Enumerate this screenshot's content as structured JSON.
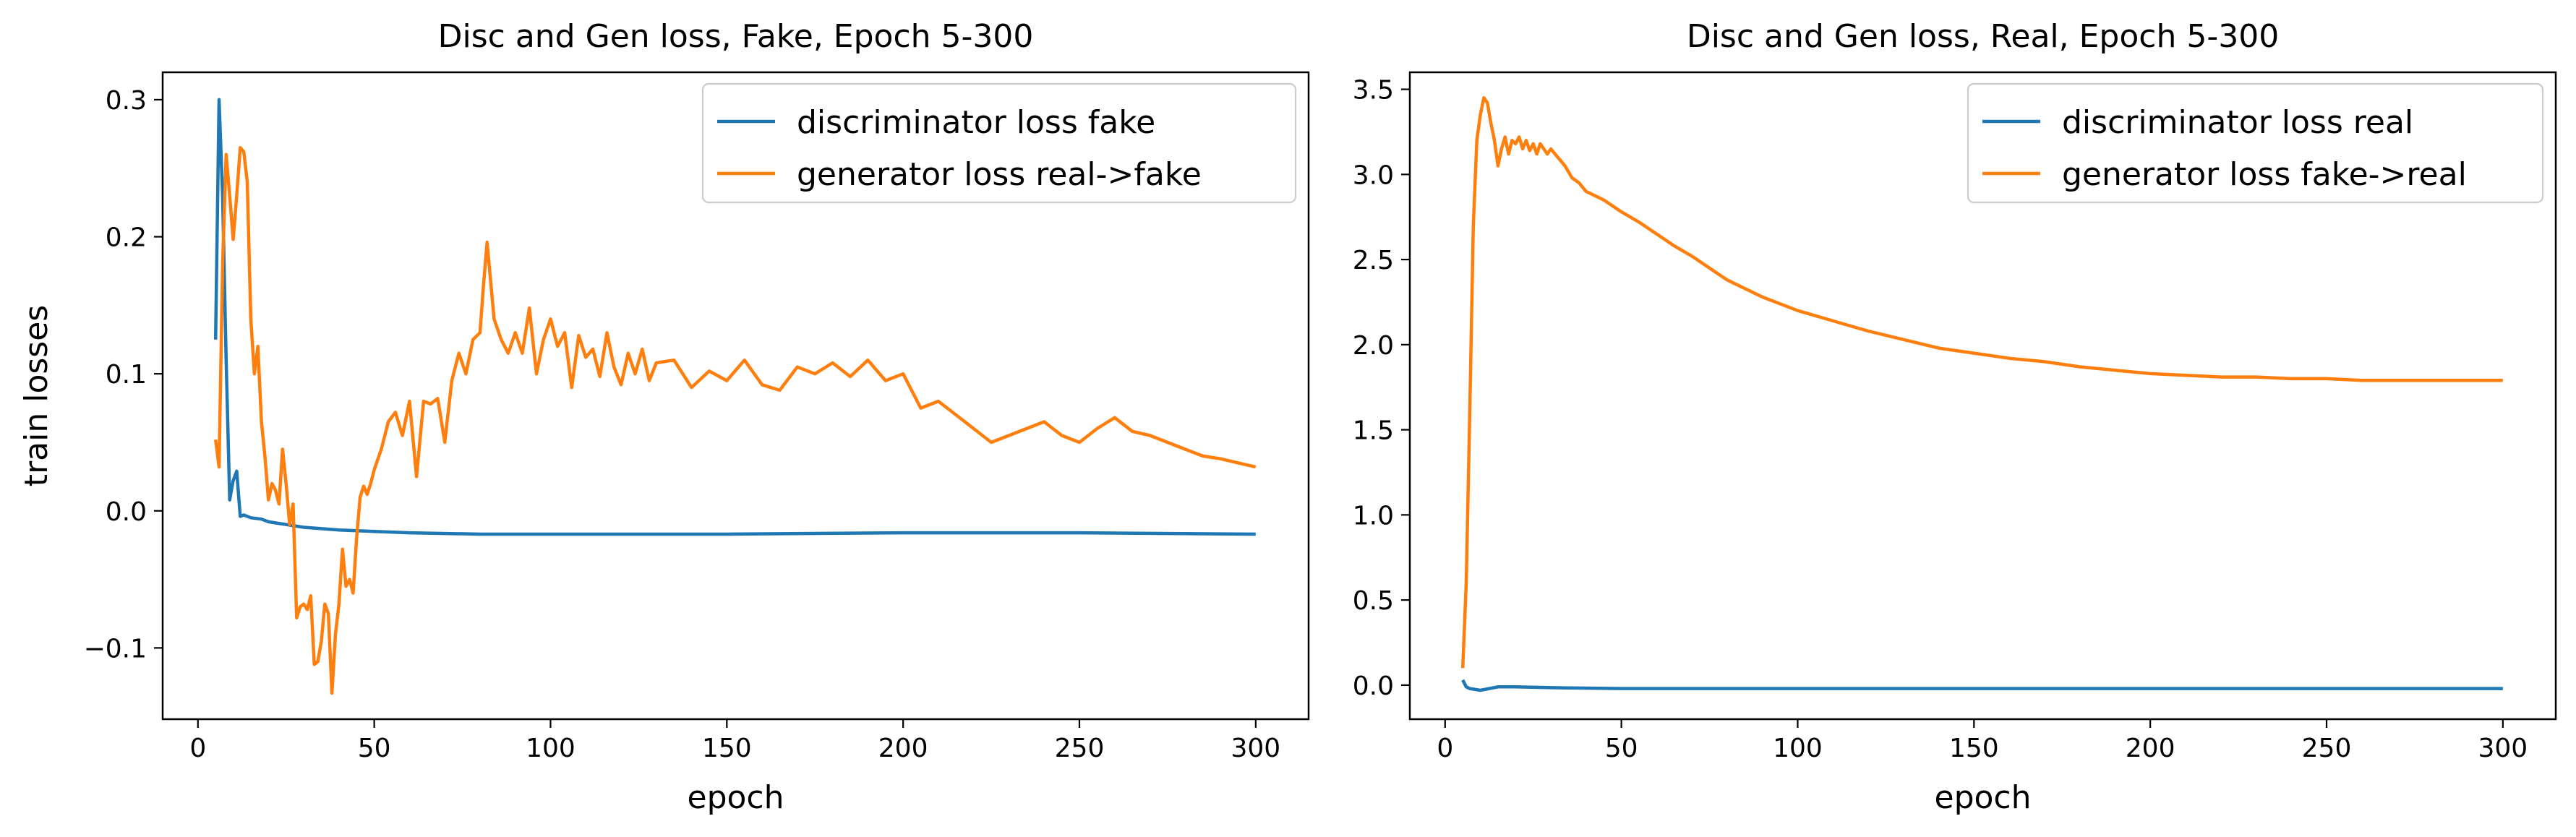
{
  "chart_data": [
    {
      "type": "line",
      "title": "Disc and Gen loss, Fake, Epoch 5-300",
      "xlabel": "epoch",
      "ylabel": "train losses",
      "xlim": [
        -10,
        315
      ],
      "ylim": [
        -0.152,
        0.32
      ],
      "xticks": [
        0,
        50,
        100,
        150,
        200,
        250,
        300
      ],
      "xtick_labels": [
        "0",
        "50",
        "100",
        "150",
        "200",
        "250",
        "300"
      ],
      "yticks": [
        -0.1,
        0.0,
        0.1,
        0.2,
        0.3
      ],
      "ytick_labels": [
        "−0.1",
        "0.0",
        "0.1",
        "0.2",
        "0.3"
      ],
      "grid": false,
      "legend_position": "top-right",
      "series": [
        {
          "name": "discriminator loss fake",
          "color": "#1f77b4",
          "x": [
            5,
            6,
            7,
            8,
            9,
            10,
            11,
            12,
            13,
            15,
            18,
            20,
            25,
            30,
            35,
            40,
            50,
            60,
            80,
            100,
            150,
            200,
            250,
            300
          ],
          "y": [
            0.125,
            0.3,
            0.23,
            0.11,
            0.008,
            0.022,
            0.029,
            -0.004,
            -0.003,
            -0.005,
            -0.006,
            -0.008,
            -0.01,
            -0.012,
            -0.013,
            -0.014,
            -0.015,
            -0.016,
            -0.017,
            -0.017,
            -0.017,
            -0.016,
            -0.016,
            -0.017
          ]
        },
        {
          "name": "generator loss real->fake",
          "color": "#ff7f0e",
          "x": [
            5,
            6,
            7,
            8,
            9,
            10,
            11,
            12,
            13,
            14,
            15,
            16,
            17,
            18,
            19,
            20,
            21,
            22,
            23,
            24,
            25,
            26,
            27,
            28,
            29,
            30,
            31,
            32,
            33,
            34,
            35,
            36,
            37,
            38,
            39,
            40,
            41,
            42,
            43,
            44,
            45,
            46,
            47,
            48,
            49,
            50,
            52,
            54,
            56,
            58,
            60,
            62,
            64,
            66,
            68,
            70,
            72,
            74,
            76,
            78,
            80,
            81,
            82,
            84,
            86,
            88,
            90,
            92,
            94,
            96,
            98,
            100,
            102,
            104,
            106,
            108,
            110,
            112,
            114,
            116,
            118,
            120,
            122,
            124,
            126,
            128,
            130,
            135,
            140,
            145,
            150,
            155,
            160,
            165,
            170,
            175,
            180,
            185,
            190,
            195,
            200,
            205,
            210,
            215,
            220,
            225,
            230,
            235,
            240,
            245,
            250,
            255,
            260,
            265,
            270,
            275,
            280,
            285,
            290,
            295,
            300
          ],
          "y": [
            0.052,
            0.032,
            0.18,
            0.26,
            0.23,
            0.198,
            0.23,
            0.265,
            0.262,
            0.24,
            0.14,
            0.1,
            0.12,
            0.065,
            0.04,
            0.008,
            0.02,
            0.015,
            0.005,
            0.045,
            0.02,
            -0.01,
            0.005,
            -0.078,
            -0.07,
            -0.068,
            -0.072,
            -0.062,
            -0.112,
            -0.11,
            -0.095,
            -0.068,
            -0.075,
            -0.133,
            -0.09,
            -0.068,
            -0.028,
            -0.055,
            -0.05,
            -0.06,
            -0.02,
            0.01,
            0.018,
            0.012,
            0.02,
            0.03,
            0.045,
            0.065,
            0.072,
            0.055,
            0.08,
            0.025,
            0.08,
            0.078,
            0.082,
            0.05,
            0.095,
            0.115,
            0.1,
            0.125,
            0.13,
            0.165,
            0.196,
            0.14,
            0.125,
            0.115,
            0.13,
            0.115,
            0.148,
            0.1,
            0.125,
            0.14,
            0.12,
            0.13,
            0.09,
            0.128,
            0.112,
            0.118,
            0.098,
            0.13,
            0.105,
            0.092,
            0.115,
            0.1,
            0.118,
            0.095,
            0.108,
            0.11,
            0.09,
            0.102,
            0.095,
            0.11,
            0.092,
            0.088,
            0.105,
            0.1,
            0.108,
            0.098,
            0.11,
            0.095,
            0.1,
            0.075,
            0.08,
            0.07,
            0.06,
            0.05,
            0.055,
            0.06,
            0.065,
            0.055,
            0.05,
            0.06,
            0.068,
            0.058,
            0.055,
            0.05,
            0.045,
            0.04,
            0.038,
            0.035,
            0.032
          ]
        }
      ]
    },
    {
      "type": "line",
      "title": "Disc and Gen loss, Real, Epoch 5-300",
      "xlabel": "epoch",
      "ylabel": "",
      "xlim": [
        -10,
        315
      ],
      "ylim": [
        -0.2,
        3.6
      ],
      "xticks": [
        0,
        50,
        100,
        150,
        200,
        250,
        300
      ],
      "xtick_labels": [
        "0",
        "50",
        "100",
        "150",
        "200",
        "250",
        "300"
      ],
      "yticks": [
        0.0,
        0.5,
        1.0,
        1.5,
        2.0,
        2.5,
        3.0,
        3.5
      ],
      "ytick_labels": [
        "0.0",
        "0.5",
        "1.0",
        "1.5",
        "2.0",
        "2.5",
        "3.0",
        "3.5"
      ],
      "grid": false,
      "legend_position": "top-right",
      "series": [
        {
          "name": "discriminator loss real",
          "color": "#1f77b4",
          "x": [
            5,
            6,
            7,
            10,
            15,
            20,
            30,
            50,
            100,
            150,
            200,
            250,
            300
          ],
          "y": [
            0.03,
            -0.01,
            -0.02,
            -0.03,
            -0.01,
            -0.01,
            -0.015,
            -0.02,
            -0.02,
            -0.02,
            -0.02,
            -0.02,
            -0.02
          ]
        },
        {
          "name": "generator loss fake->real",
          "color": "#ff7f0e",
          "x": [
            5,
            6,
            7,
            8,
            9,
            10,
            11,
            12,
            13,
            14,
            15,
            16,
            17,
            18,
            19,
            20,
            21,
            22,
            23,
            24,
            25,
            26,
            27,
            28,
            29,
            30,
            32,
            34,
            36,
            38,
            40,
            45,
            50,
            55,
            60,
            65,
            70,
            75,
            80,
            85,
            90,
            95,
            100,
            110,
            120,
            130,
            140,
            150,
            160,
            170,
            180,
            190,
            200,
            210,
            220,
            230,
            240,
            250,
            260,
            270,
            280,
            290,
            300
          ],
          "y": [
            0.1,
            0.6,
            1.6,
            2.7,
            3.2,
            3.35,
            3.45,
            3.42,
            3.3,
            3.2,
            3.05,
            3.15,
            3.22,
            3.12,
            3.2,
            3.18,
            3.22,
            3.15,
            3.2,
            3.14,
            3.18,
            3.12,
            3.18,
            3.15,
            3.12,
            3.15,
            3.1,
            3.05,
            2.98,
            2.95,
            2.9,
            2.85,
            2.78,
            2.72,
            2.65,
            2.58,
            2.52,
            2.45,
            2.38,
            2.33,
            2.28,
            2.24,
            2.2,
            2.14,
            2.08,
            2.03,
            1.98,
            1.95,
            1.92,
            1.9,
            1.87,
            1.85,
            1.83,
            1.82,
            1.81,
            1.81,
            1.8,
            1.8,
            1.79,
            1.79,
            1.79,
            1.79,
            1.79
          ]
        }
      ]
    }
  ]
}
